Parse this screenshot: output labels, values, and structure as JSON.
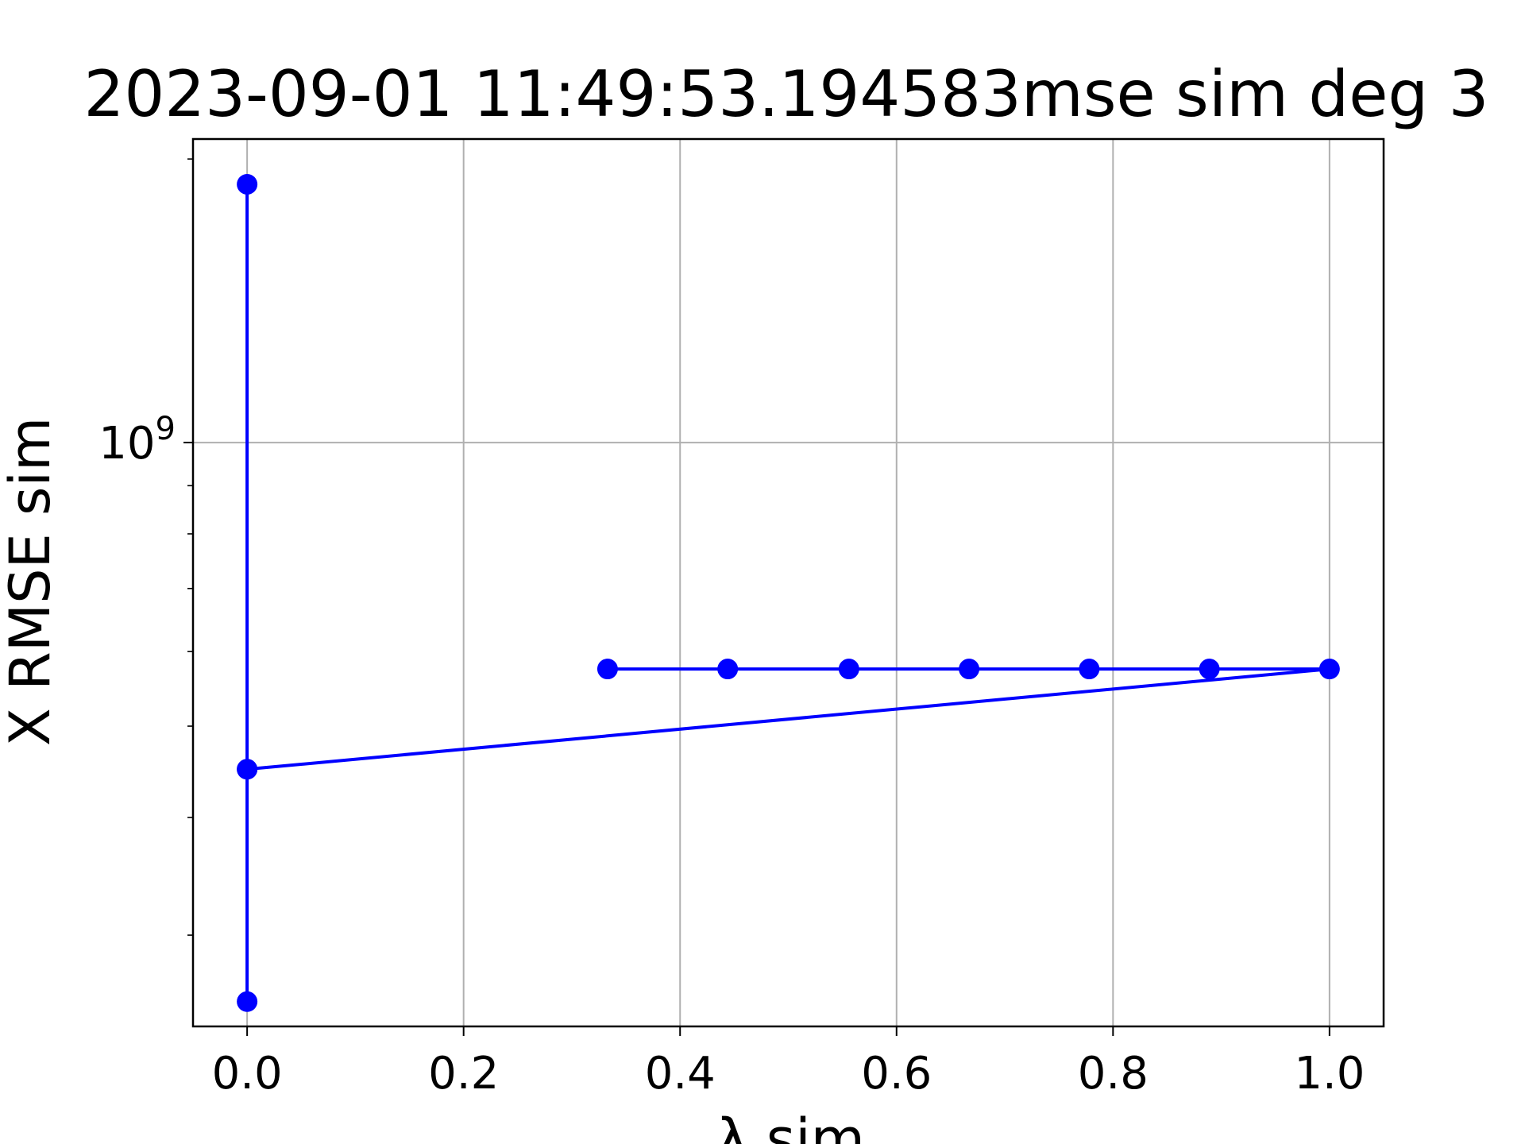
{
  "chart_data": {
    "type": "line",
    "title": "2023-09-01 11:49:53.194583mse sim deg 3",
    "xlabel": "λ sim",
    "ylabel": "X RMSE sim",
    "y_scale": "log",
    "xlim": [
      -0.05,
      1.05
    ],
    "ylim": [
      240000000,
      2100000000
    ],
    "grid": true,
    "x_ticks": [
      {
        "value": 0.0,
        "label": "0.0"
      },
      {
        "value": 0.2,
        "label": "0.2"
      },
      {
        "value": 0.4,
        "label": "0.4"
      },
      {
        "value": 0.6,
        "label": "0.6"
      },
      {
        "value": 0.8,
        "label": "0.8"
      },
      {
        "value": 1.0,
        "label": "1.0"
      }
    ],
    "y_major_ticks": [
      {
        "value": 1000000000,
        "base": "10",
        "exponent": "9"
      }
    ],
    "y_minor_ticks": [
      300000000,
      400000000,
      500000000,
      600000000,
      700000000,
      800000000,
      900000000,
      2000000000
    ],
    "series": [
      {
        "color": "#0000ff",
        "marker": "circle",
        "points": [
          {
            "x": 0.0,
            "y": 1880000000
          },
          {
            "x": 0.0,
            "y": 450000000
          },
          {
            "x": 0.0,
            "y": 255000000
          },
          {
            "x": 0.0,
            "y": 450000000
          },
          {
            "x": 1.0,
            "y": 575000000
          },
          {
            "x": 0.889,
            "y": 575000000
          },
          {
            "x": 0.778,
            "y": 575000000
          },
          {
            "x": 0.667,
            "y": 575000000
          },
          {
            "x": 0.556,
            "y": 575000000
          },
          {
            "x": 0.444,
            "y": 575000000
          },
          {
            "x": 0.333,
            "y": 575000000
          }
        ]
      }
    ]
  }
}
